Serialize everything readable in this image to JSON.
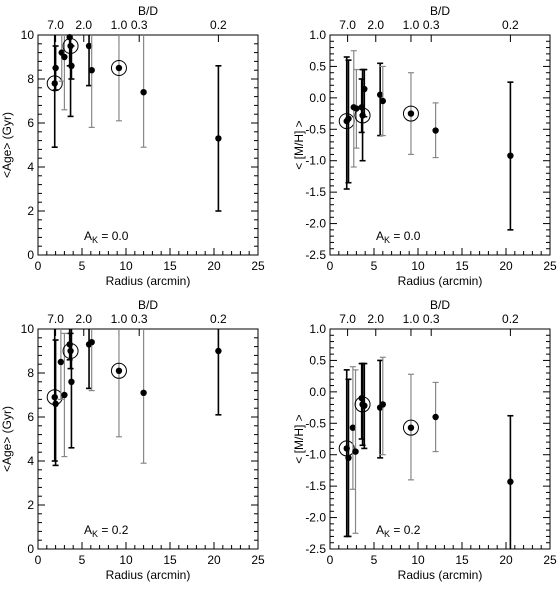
{
  "chart_data": [
    {
      "type": "scatter",
      "xlabel": "Radius (arcmin)",
      "ylabel": "<Age> (Gyr)",
      "top_axis_label": "B/D",
      "top_ticks": [
        {
          "x": 2.0,
          "label": "7.0"
        },
        {
          "x": 5.2,
          "label": "2.0"
        },
        {
          "x": 9.2,
          "label": "1.0"
        },
        {
          "x": 11.5,
          "label": "0.3"
        },
        {
          "x": 20.5,
          "label": "0.2"
        }
      ],
      "annotation": {
        "text": "A",
        "sub": "K",
        "suffix": " = 0.0"
      },
      "xlim": [
        0,
        25
      ],
      "ylim": [
        0,
        10
      ],
      "xticks": [
        0,
        5,
        10,
        15,
        20,
        25
      ],
      "yticks": [
        0,
        2,
        4,
        6,
        8,
        10
      ],
      "points": [
        {
          "x": 1.9,
          "y": 7.8,
          "lo": 4.9,
          "hi": 10.0,
          "color": "#000000",
          "circled": true
        },
        {
          "x": 2.0,
          "y": 8.5,
          "lo": 7.5,
          "hi": 9.5,
          "color": "#000000",
          "circled": false
        },
        {
          "x": 2.7,
          "y": 9.2,
          "lo": 7.9,
          "hi": 10.0,
          "color": "#888888",
          "circled": false
        },
        {
          "x": 3.0,
          "y": 9.0,
          "lo": 6.6,
          "hi": 10.0,
          "color": "#888888",
          "circled": false
        },
        {
          "x": 3.6,
          "y": 9.9,
          "lo": 8.6,
          "hi": 10.0,
          "color": "#000000",
          "circled": false
        },
        {
          "x": 3.7,
          "y": 9.5,
          "lo": 6.3,
          "hi": 10.0,
          "color": "#000000",
          "circled": true
        },
        {
          "x": 3.8,
          "y": 8.6,
          "lo": 8.0,
          "hi": 9.5,
          "color": "#000000",
          "circled": false
        },
        {
          "x": 5.8,
          "y": 9.5,
          "lo": 7.7,
          "hi": 10.0,
          "color": "#000000",
          "circled": false
        },
        {
          "x": 6.1,
          "y": 8.4,
          "lo": 5.8,
          "hi": 10.0,
          "color": "#888888",
          "circled": false
        },
        {
          "x": 9.2,
          "y": 8.5,
          "lo": 6.1,
          "hi": 10.0,
          "color": "#888888",
          "circled": true
        },
        {
          "x": 12.0,
          "y": 7.4,
          "lo": 4.9,
          "hi": 10.0,
          "color": "#888888",
          "circled": false
        },
        {
          "x": 20.5,
          "y": 5.3,
          "lo": 2.0,
          "hi": 8.6,
          "color": "#000000",
          "circled": false
        }
      ]
    },
    {
      "type": "scatter",
      "xlabel": "Radius (arcmin)",
      "ylabel": "< [M/H] >",
      "top_axis_label": "B/D",
      "top_ticks": [
        {
          "x": 2.0,
          "label": "7.0"
        },
        {
          "x": 5.2,
          "label": "2.0"
        },
        {
          "x": 9.2,
          "label": "1.0"
        },
        {
          "x": 11.5,
          "label": "0.3"
        },
        {
          "x": 20.5,
          "label": "0.2"
        }
      ],
      "annotation": {
        "text": "A",
        "sub": "K",
        "suffix": " = 0.0"
      },
      "xlim": [
        0,
        25
      ],
      "ylim": [
        -2.5,
        1.0
      ],
      "xticks": [
        0,
        5,
        10,
        15,
        20,
        25
      ],
      "yticks": [
        -2.5,
        -2.0,
        -1.5,
        -1.0,
        -0.5,
        0.0,
        0.5,
        1.0
      ],
      "points": [
        {
          "x": 1.9,
          "y": -0.37,
          "lo": -1.45,
          "hi": 0.65,
          "color": "#000000",
          "circled": true
        },
        {
          "x": 2.1,
          "y": -0.33,
          "lo": -1.35,
          "hi": 0.6,
          "color": "#000000",
          "circled": false
        },
        {
          "x": 2.7,
          "y": -0.15,
          "lo": -1.1,
          "hi": 0.75,
          "color": "#888888",
          "circled": false
        },
        {
          "x": 3.0,
          "y": -0.17,
          "lo": -0.8,
          "hi": 0.45,
          "color": "#888888",
          "circled": false
        },
        {
          "x": 3.6,
          "y": -0.15,
          "lo": -0.55,
          "hi": 0.3,
          "color": "#000000",
          "circled": false
        },
        {
          "x": 3.7,
          "y": -0.28,
          "lo": -1.0,
          "hi": 0.45,
          "color": "#000000",
          "circled": true
        },
        {
          "x": 3.9,
          "y": 0.14,
          "lo": -0.3,
          "hi": 0.45,
          "color": "#000000",
          "circled": false
        },
        {
          "x": 5.7,
          "y": 0.05,
          "lo": -0.6,
          "hi": 0.55,
          "color": "#000000",
          "circled": false
        },
        {
          "x": 6.0,
          "y": -0.05,
          "lo": -0.6,
          "hi": 0.5,
          "color": "#888888",
          "circled": false
        },
        {
          "x": 9.2,
          "y": -0.25,
          "lo": -0.9,
          "hi": 0.4,
          "color": "#888888",
          "circled": true
        },
        {
          "x": 12.0,
          "y": -0.52,
          "lo": -0.95,
          "hi": -0.08,
          "color": "#888888",
          "circled": false
        },
        {
          "x": 20.5,
          "y": -0.92,
          "lo": -2.1,
          "hi": 0.25,
          "color": "#000000",
          "circled": false
        }
      ]
    },
    {
      "type": "scatter",
      "xlabel": "Radius (arcmin)",
      "ylabel": "<Age> (Gyr)",
      "top_axis_label": "B/D",
      "top_ticks": [
        {
          "x": 2.0,
          "label": "7.0"
        },
        {
          "x": 5.2,
          "label": "2.0"
        },
        {
          "x": 9.2,
          "label": "1.0"
        },
        {
          "x": 11.5,
          "label": "0.3"
        },
        {
          "x": 20.5,
          "label": "0.2"
        }
      ],
      "annotation": {
        "text": "A",
        "sub": "K",
        "suffix": " = 0.2"
      },
      "xlim": [
        0,
        25
      ],
      "ylim": [
        0,
        10
      ],
      "xticks": [
        0,
        5,
        10,
        15,
        20,
        25
      ],
      "yticks": [
        0,
        2,
        4,
        6,
        8,
        10
      ],
      "points": [
        {
          "x": 1.9,
          "y": 6.9,
          "lo": 4.0,
          "hi": 10.0,
          "color": "#000000",
          "circled": true
        },
        {
          "x": 2.0,
          "y": 6.6,
          "lo": 3.8,
          "hi": 9.5,
          "color": "#000000",
          "circled": false
        },
        {
          "x": 2.6,
          "y": 8.5,
          "lo": 6.8,
          "hi": 10.0,
          "color": "#888888",
          "circled": false
        },
        {
          "x": 3.0,
          "y": 7.0,
          "lo": 4.2,
          "hi": 9.8,
          "color": "#888888",
          "circled": false
        },
        {
          "x": 3.6,
          "y": 9.3,
          "lo": 8.6,
          "hi": 10.0,
          "color": "#000000",
          "circled": false
        },
        {
          "x": 3.7,
          "y": 9.0,
          "lo": 8.2,
          "hi": 9.8,
          "color": "#000000",
          "circled": true
        },
        {
          "x": 3.8,
          "y": 7.6,
          "lo": 4.6,
          "hi": 10.0,
          "color": "#000000",
          "circled": false
        },
        {
          "x": 5.8,
          "y": 9.3,
          "lo": 7.3,
          "hi": 10.0,
          "color": "#000000",
          "circled": false
        },
        {
          "x": 6.1,
          "y": 9.4,
          "lo": 7.2,
          "hi": 10.0,
          "color": "#888888",
          "circled": false
        },
        {
          "x": 9.2,
          "y": 8.1,
          "lo": 5.1,
          "hi": 10.0,
          "color": "#888888",
          "circled": true
        },
        {
          "x": 12.0,
          "y": 7.1,
          "lo": 3.9,
          "hi": 10.0,
          "color": "#888888",
          "circled": false
        },
        {
          "x": 20.5,
          "y": 9.0,
          "lo": 6.1,
          "hi": 10.0,
          "color": "#000000",
          "circled": false
        }
      ]
    },
    {
      "type": "scatter",
      "xlabel": "Radius (arcmin)",
      "ylabel": "< [M/H] >",
      "top_axis_label": "B/D",
      "top_ticks": [
        {
          "x": 2.0,
          "label": "7.0"
        },
        {
          "x": 5.2,
          "label": "2.0"
        },
        {
          "x": 9.2,
          "label": "1.0"
        },
        {
          "x": 11.5,
          "label": "0.3"
        },
        {
          "x": 20.5,
          "label": "0.2"
        }
      ],
      "annotation": {
        "text": "A",
        "sub": "K",
        "suffix": " = 0.2"
      },
      "xlim": [
        0,
        25
      ],
      "ylim": [
        -2.5,
        1.0
      ],
      "xticks": [
        0,
        5,
        10,
        15,
        20,
        25
      ],
      "yticks": [
        -2.5,
        -2.0,
        -1.5,
        -1.0,
        -0.5,
        0.0,
        0.5,
        1.0
      ],
      "points": [
        {
          "x": 1.9,
          "y": -0.9,
          "lo": -2.3,
          "hi": 0.35,
          "color": "#000000",
          "circled": true
        },
        {
          "x": 2.1,
          "y": -1.05,
          "lo": -2.3,
          "hi": 0.2,
          "color": "#000000",
          "circled": false
        },
        {
          "x": 2.6,
          "y": -0.57,
          "lo": -1.55,
          "hi": 0.4,
          "color": "#888888",
          "circled": false
        },
        {
          "x": 2.9,
          "y": -0.95,
          "lo": -2.25,
          "hi": 0.35,
          "color": "#888888",
          "circled": false
        },
        {
          "x": 3.6,
          "y": -0.1,
          "lo": -0.75,
          "hi": 0.45,
          "color": "#000000",
          "circled": false
        },
        {
          "x": 3.7,
          "y": -0.2,
          "lo": -0.85,
          "hi": 0.45,
          "color": "#000000",
          "circled": true
        },
        {
          "x": 3.9,
          "y": -0.22,
          "lo": -0.9,
          "hi": 0.45,
          "color": "#000000",
          "circled": false
        },
        {
          "x": 5.7,
          "y": -0.25,
          "lo": -1.05,
          "hi": 0.5,
          "color": "#000000",
          "circled": false
        },
        {
          "x": 6.0,
          "y": -0.2,
          "lo": -1.0,
          "hi": 0.55,
          "color": "#888888",
          "circled": false
        },
        {
          "x": 9.2,
          "y": -0.57,
          "lo": -1.4,
          "hi": 0.28,
          "color": "#888888",
          "circled": true
        },
        {
          "x": 12.0,
          "y": -0.4,
          "lo": -0.95,
          "hi": 0.15,
          "color": "#888888",
          "circled": false
        },
        {
          "x": 20.5,
          "y": -1.43,
          "lo": -2.5,
          "hi": -0.38,
          "color": "#000000",
          "circled": false
        }
      ]
    }
  ]
}
